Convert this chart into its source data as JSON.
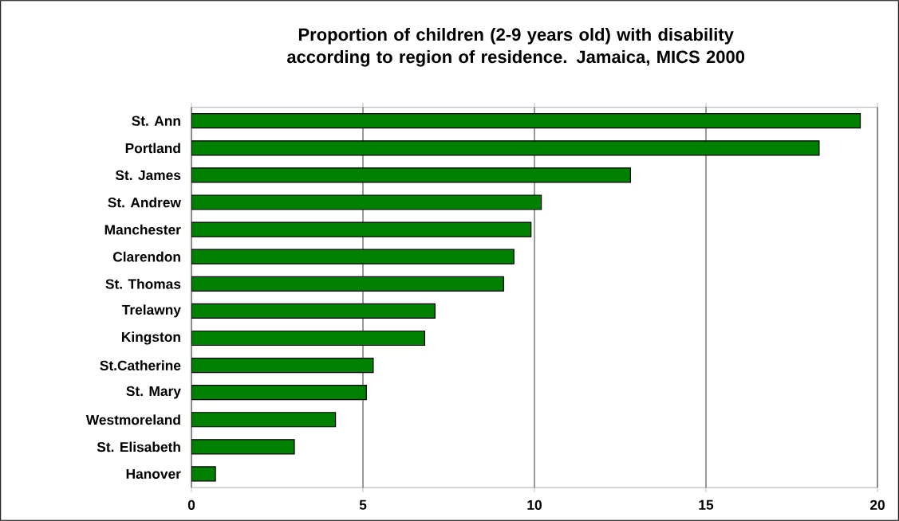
{
  "chart_data": {
    "type": "bar",
    "orientation": "horizontal",
    "title": "Proportion of children (2-9 years old) with disability according to region of residence. Jamaica, MICS 2000",
    "categories": [
      "St. Ann",
      "Portland",
      "St. James",
      "St. Andrew",
      "Manchester",
      "Clarendon",
      "St. Thomas",
      "Trelawny",
      "Kingston",
      "St.Catherine",
      "St. Mary",
      "Westmoreland",
      "St. Elisabeth",
      "Hanover"
    ],
    "values": [
      19.5,
      18.3,
      12.8,
      10.2,
      9.9,
      9.4,
      9.1,
      7.1,
      6.8,
      5.3,
      5.1,
      4.2,
      3.0,
      0.7
    ],
    "color": "#008000",
    "xlim": [
      0,
      20
    ],
    "xticks": [
      0,
      5,
      10,
      15,
      20
    ],
    "grid": "x"
  }
}
